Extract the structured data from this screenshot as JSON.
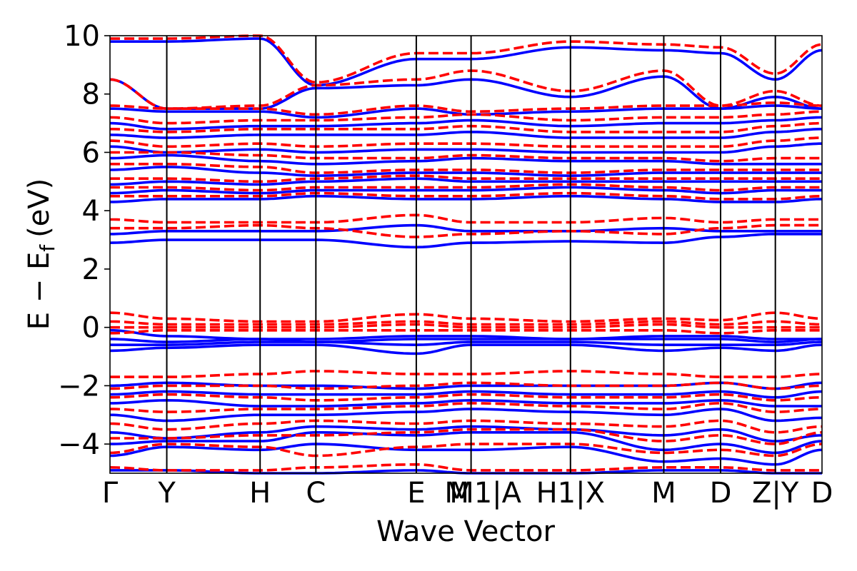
{
  "chart_data": {
    "type": "line",
    "xlabel": "Wave Vector",
    "ylabel": "E − E",
    "ylabel_sub": "f",
    "ylabel_unit": "(eV)",
    "ylim": [
      -5,
      10
    ],
    "yticks": [
      {
        "value": -4,
        "label": "−4"
      },
      {
        "value": -2,
        "label": "−2"
      },
      {
        "value": 0,
        "label": "0"
      },
      {
        "value": 2,
        "label": "2"
      },
      {
        "value": 4,
        "label": "4"
      },
      {
        "value": 6,
        "label": "6"
      },
      {
        "value": 8,
        "label": "8"
      },
      {
        "value": 10,
        "label": "10"
      }
    ],
    "kpoints": [
      {
        "pos": 0.0,
        "label": "Γ"
      },
      {
        "pos": 0.56,
        "label": "Y"
      },
      {
        "pos": 1.48,
        "label": "H"
      },
      {
        "pos": 2.03,
        "label": "C"
      },
      {
        "pos": 3.02,
        "label": "E"
      },
      {
        "pos": 3.56,
        "label": "M"
      },
      {
        "pos": 3.56,
        "label": "M1|A"
      },
      {
        "pos": 4.54,
        "label": "H1|X"
      },
      {
        "pos": 5.46,
        "label": "M"
      },
      {
        "pos": 6.02,
        "label": "D"
      },
      {
        "pos": 6.56,
        "label": "Z|Y"
      },
      {
        "pos": 7.02,
        "label": "D"
      }
    ],
    "xlim": [
      0,
      7.02
    ],
    "grid": false,
    "series": [
      {
        "color": "#0000ff",
        "style": "solid",
        "x": [
          0,
          0.56,
          1.48,
          2.03,
          3.02,
          3.56,
          4.54,
          5.46,
          6.02,
          6.56,
          7.02
        ],
        "bands": [
          [
            -4.9,
            -4.9,
            -5.0,
            -5.0,
            -4.9,
            -5.0,
            -5.0,
            -4.9,
            -4.9,
            -5.0,
            -5.0
          ],
          [
            -4.4,
            -4.1,
            -4.2,
            -4.0,
            -4.2,
            -4.2,
            -4.1,
            -4.6,
            -4.5,
            -4.7,
            -4.2
          ],
          [
            -4.0,
            -3.9,
            -3.9,
            -3.6,
            -3.7,
            -3.6,
            -3.6,
            -4.2,
            -4.0,
            -4.3,
            -3.9
          ],
          [
            -3.6,
            -3.8,
            -3.6,
            -3.4,
            -3.5,
            -3.4,
            -3.5,
            -3.7,
            -3.5,
            -3.9,
            -3.7
          ],
          [
            -3.0,
            -3.2,
            -3.0,
            -3.0,
            -2.9,
            -2.8,
            -2.9,
            -3.0,
            -2.8,
            -3.2,
            -3.1
          ],
          [
            -2.6,
            -2.5,
            -2.7,
            -2.7,
            -2.6,
            -2.5,
            -2.6,
            -2.6,
            -2.5,
            -2.7,
            -2.7
          ],
          [
            -2.3,
            -2.2,
            -2.3,
            -2.3,
            -2.3,
            -2.2,
            -2.3,
            -2.3,
            -2.2,
            -2.4,
            -2.2
          ],
          [
            -2.0,
            -1.9,
            -2.0,
            -2.0,
            -2.1,
            -2.0,
            -2.0,
            -2.0,
            -1.9,
            -2.1,
            -1.9
          ],
          [
            -0.8,
            -0.7,
            -0.6,
            -0.6,
            -0.9,
            -0.6,
            -0.6,
            -0.8,
            -0.7,
            -0.8,
            -0.6
          ],
          [
            -0.6,
            -0.6,
            -0.5,
            -0.5,
            -0.6,
            -0.5,
            -0.5,
            -0.6,
            -0.6,
            -0.6,
            -0.5
          ],
          [
            -0.4,
            -0.5,
            -0.4,
            -0.5,
            -0.4,
            -0.4,
            -0.4,
            -0.4,
            -0.4,
            -0.5,
            -0.4
          ],
          [
            -0.1,
            -0.3,
            -0.4,
            -0.4,
            -0.3,
            -0.3,
            -0.4,
            -0.3,
            -0.3,
            -0.4,
            -0.4
          ],
          [
            2.9,
            3.0,
            3.0,
            3.0,
            2.75,
            2.9,
            2.95,
            2.9,
            3.1,
            3.2,
            3.2
          ],
          [
            3.2,
            3.3,
            3.3,
            3.3,
            3.5,
            3.3,
            3.3,
            3.4,
            3.3,
            3.3,
            3.3
          ],
          [
            4.3,
            4.4,
            4.4,
            4.5,
            4.4,
            4.4,
            4.5,
            4.4,
            4.3,
            4.3,
            4.4
          ],
          [
            4.6,
            4.7,
            4.6,
            4.7,
            4.7,
            4.7,
            4.8,
            4.7,
            4.6,
            4.7,
            4.7
          ],
          [
            4.9,
            5.0,
            4.9,
            5.0,
            5.1,
            5.0,
            5.0,
            5.0,
            5.0,
            5.0,
            5.0
          ],
          [
            5.4,
            5.5,
            5.3,
            5.2,
            5.3,
            5.3,
            5.2,
            5.3,
            5.3,
            5.3,
            5.3
          ],
          [
            5.8,
            5.9,
            5.7,
            5.6,
            5.7,
            5.8,
            5.7,
            5.7,
            5.6,
            5.6,
            5.6
          ],
          [
            6.2,
            6.0,
            6.1,
            6.0,
            6.1,
            6.1,
            6.0,
            6.0,
            6.0,
            6.2,
            6.3
          ],
          [
            6.6,
            6.5,
            6.6,
            6.6,
            6.6,
            6.7,
            6.5,
            6.5,
            6.5,
            6.7,
            6.8
          ],
          [
            7.0,
            6.8,
            6.9,
            6.9,
            7.0,
            7.1,
            6.9,
            7.0,
            7.0,
            7.1,
            7.2
          ],
          [
            7.5,
            7.4,
            7.4,
            7.2,
            7.5,
            7.3,
            7.4,
            7.5,
            7.5,
            7.6,
            7.5
          ],
          [
            8.5,
            7.5,
            7.5,
            8.2,
            8.3,
            8.5,
            7.9,
            8.6,
            7.5,
            7.9,
            7.5
          ],
          [
            9.8,
            9.8,
            9.9,
            8.3,
            9.2,
            9.2,
            9.6,
            9.5,
            9.4,
            8.5,
            9.5
          ]
        ]
      },
      {
        "color": "#ff0000",
        "style": "dashed",
        "x": [
          0,
          0.56,
          1.48,
          2.03,
          3.02,
          3.56,
          4.54,
          5.46,
          6.02,
          6.56,
          7.02
        ],
        "bands": [
          [
            -4.8,
            -4.9,
            -4.9,
            -4.8,
            -4.7,
            -4.9,
            -4.9,
            -4.8,
            -4.8,
            -4.9,
            -4.9
          ],
          [
            -4.3,
            -4.0,
            -4.1,
            -4.4,
            -4.1,
            -4.0,
            -4.0,
            -4.3,
            -4.2,
            -4.4,
            -4.0
          ],
          [
            -3.8,
            -3.8,
            -3.7,
            -3.7,
            -3.6,
            -3.5,
            -3.5,
            -3.9,
            -3.7,
            -4.0,
            -3.6
          ],
          [
            -3.3,
            -3.5,
            -3.3,
            -3.2,
            -3.3,
            -3.2,
            -3.3,
            -3.4,
            -3.2,
            -3.6,
            -3.4
          ],
          [
            -2.8,
            -2.9,
            -2.8,
            -2.8,
            -2.7,
            -2.6,
            -2.7,
            -2.8,
            -2.6,
            -2.9,
            -2.8
          ],
          [
            -2.4,
            -2.3,
            -2.4,
            -2.5,
            -2.4,
            -2.3,
            -2.4,
            -2.4,
            -2.3,
            -2.5,
            -2.4
          ],
          [
            -2.1,
            -2.0,
            -2.0,
            -2.1,
            -2.0,
            -1.9,
            -2.0,
            -2.0,
            -1.9,
            -2.1,
            -2.0
          ],
          [
            -1.7,
            -1.7,
            -1.6,
            -1.5,
            -1.6,
            -1.6,
            -1.5,
            -1.6,
            -1.7,
            -1.7,
            -1.6
          ],
          [
            -0.2,
            -0.1,
            -0.1,
            -0.1,
            -0.1,
            -0.1,
            -0.1,
            -0.1,
            -0.2,
            -0.1,
            -0.1
          ],
          [
            0.0,
            0.0,
            0.0,
            0.0,
            0.1,
            0.0,
            0.0,
            0.1,
            0.0,
            0.0,
            0.0
          ],
          [
            0.2,
            0.1,
            0.1,
            0.1,
            0.2,
            0.1,
            0.1,
            0.2,
            0.1,
            0.2,
            0.1
          ],
          [
            0.5,
            0.3,
            0.2,
            0.2,
            0.45,
            0.3,
            0.2,
            0.3,
            0.25,
            0.5,
            0.3
          ],
          [
            3.4,
            3.4,
            3.5,
            3.4,
            3.1,
            3.2,
            3.3,
            3.2,
            3.4,
            3.5,
            3.5
          ],
          [
            3.7,
            3.6,
            3.6,
            3.6,
            3.85,
            3.6,
            3.6,
            3.75,
            3.6,
            3.7,
            3.7
          ],
          [
            4.5,
            4.5,
            4.5,
            4.6,
            4.5,
            4.5,
            4.6,
            4.5,
            4.4,
            4.4,
            4.5
          ],
          [
            4.8,
            4.8,
            4.7,
            4.8,
            4.8,
            4.8,
            4.9,
            4.8,
            4.7,
            4.8,
            4.8
          ],
          [
            5.1,
            5.1,
            5.0,
            5.1,
            5.2,
            5.1,
            5.1,
            5.1,
            5.1,
            5.1,
            5.1
          ],
          [
            5.6,
            5.6,
            5.5,
            5.3,
            5.4,
            5.4,
            5.3,
            5.4,
            5.4,
            5.4,
            5.4
          ],
          [
            6.0,
            6.0,
            5.9,
            5.8,
            5.8,
            5.9,
            5.8,
            5.8,
            5.7,
            5.8,
            5.8
          ],
          [
            6.4,
            6.2,
            6.3,
            6.2,
            6.3,
            6.3,
            6.2,
            6.2,
            6.2,
            6.4,
            6.5
          ],
          [
            6.8,
            6.7,
            6.8,
            6.8,
            6.8,
            6.9,
            6.7,
            6.7,
            6.7,
            6.9,
            7.0
          ],
          [
            7.2,
            7.0,
            7.1,
            7.1,
            7.2,
            7.3,
            7.1,
            7.2,
            7.2,
            7.3,
            7.4
          ],
          [
            7.6,
            7.5,
            7.5,
            7.3,
            7.6,
            7.4,
            7.5,
            7.6,
            7.6,
            7.7,
            7.6
          ],
          [
            8.5,
            7.5,
            7.6,
            8.3,
            8.5,
            8.8,
            8.1,
            8.8,
            7.6,
            8.1,
            7.6
          ],
          [
            9.9,
            9.9,
            10.0,
            8.4,
            9.4,
            9.4,
            9.8,
            9.7,
            9.6,
            8.7,
            9.7
          ]
        ]
      }
    ]
  }
}
